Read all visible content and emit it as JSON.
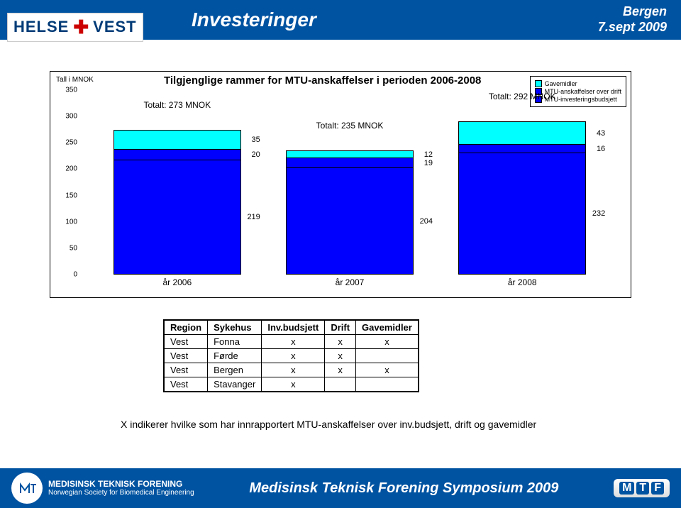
{
  "header": {
    "logo": {
      "helse": "HELSE",
      "vest": "VEST"
    },
    "title": "Investeringer",
    "right_line1": "Bergen",
    "right_line2": "7.sept 2009"
  },
  "chart": {
    "type": "stacked-bar",
    "yaxis_label": "Tall i MNOK",
    "title": "Tilgjenglige rammer for MTU-anskaffelser i perioden 2006-2008",
    "ylim": [
      0,
      350
    ],
    "yticks": [
      0,
      50,
      100,
      150,
      200,
      250,
      300,
      350
    ],
    "categories": [
      "år 2006",
      "år 2007",
      "år 2008"
    ],
    "series_colors": {
      "gavemidler": "#00ffff",
      "drift": "#0000ff",
      "budsjett": "#0000ff"
    },
    "legend": [
      {
        "label": "Gavemidler",
        "color": "#00ffff"
      },
      {
        "label": "MTU-anskaffelser over drift",
        "color": "#0000ff"
      },
      {
        "label": "MTU-investeringsbudsjett",
        "color": "#0000ff"
      }
    ],
    "bars": [
      {
        "total_label": "Totalt: 273 MNOK",
        "segments": [
          {
            "value": 35,
            "label": "35",
            "color": "#00ffff"
          },
          {
            "value": 20,
            "label": "20",
            "color": "#0000ff"
          },
          {
            "value": 219,
            "label": "219",
            "color": "#0000ff"
          }
        ]
      },
      {
        "total_label": "Totalt: 235 MNOK",
        "segments": [
          {
            "value": 12,
            "label": "12",
            "color": "#00ffff"
          },
          {
            "value": 19,
            "label": "19",
            "color": "#0000ff"
          },
          {
            "value": 204,
            "label": "204",
            "color": "#0000ff"
          }
        ]
      },
      {
        "total_label": "Totalt: 292 MNOK",
        "segments": [
          {
            "value": 43,
            "label": "43",
            "color": "#00ffff"
          },
          {
            "value": 16,
            "label": "16",
            "color": "#0000ff"
          },
          {
            "value": 232,
            "label": "232",
            "color": "#0000ff"
          }
        ]
      }
    ]
  },
  "table": {
    "columns": [
      "Region",
      "Sykehus",
      "Inv.budsjett",
      "Drift",
      "Gavemidler"
    ],
    "rows": [
      [
        "Vest",
        "Fonna",
        "x",
        "x",
        "x"
      ],
      [
        "Vest",
        "Førde",
        "x",
        "x",
        ""
      ],
      [
        "Vest",
        "Bergen",
        "x",
        "x",
        "x"
      ],
      [
        "Vest",
        "Stavanger",
        "x",
        "",
        ""
      ]
    ]
  },
  "note": "X indikerer hvilke som har innrapportert MTU-anskaffelser over inv.budsjett, drift og gavemidler",
  "footer": {
    "org_line1": "MEDISINSK TEKNISK FORENING",
    "org_line2": "Norwegian Society for Biomedical Engineering",
    "center": "Medisinsk Teknisk Forening Symposium 2009",
    "badge": [
      "M",
      "T",
      "F"
    ]
  }
}
